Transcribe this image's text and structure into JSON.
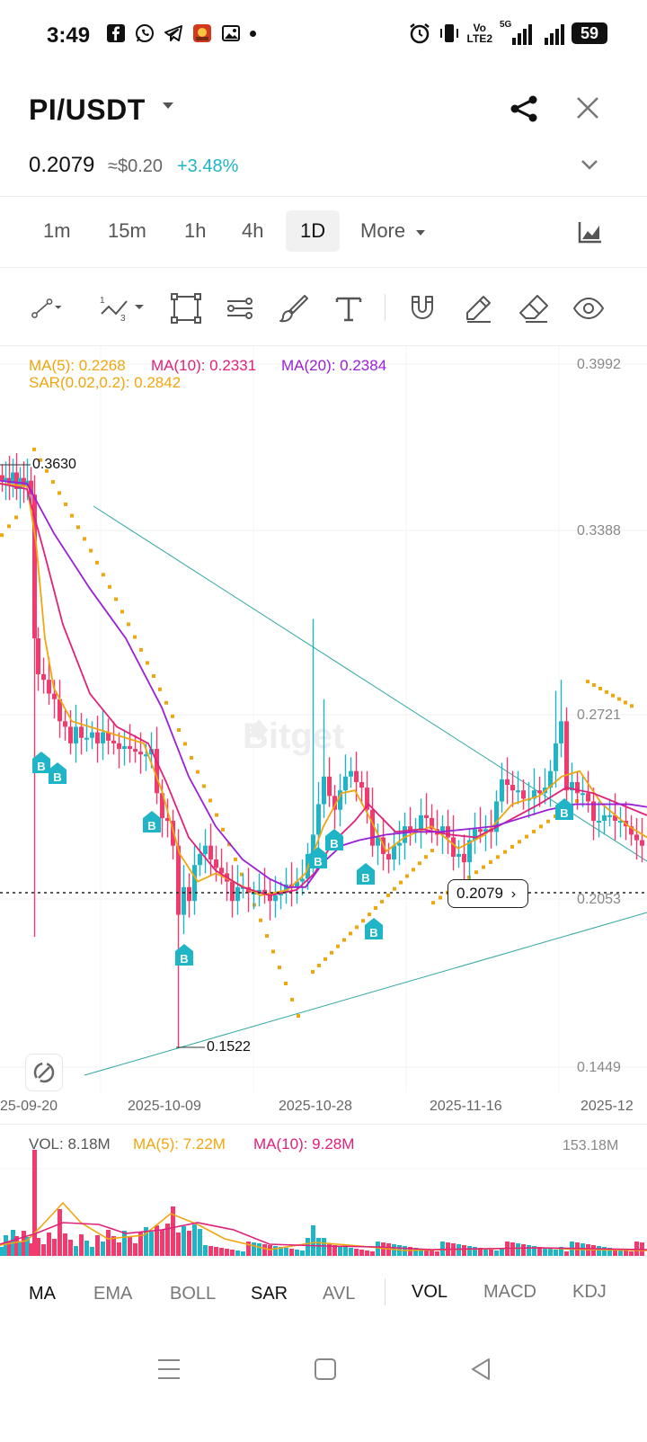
{
  "status_bar": {
    "time": "3:49",
    "left_icons": [
      "facebook-icon",
      "whatsapp-icon",
      "telegram-icon",
      "game-app-icon",
      "gallery-icon",
      "more-dot-icon"
    ],
    "right_icons": [
      "alarm-icon",
      "vibrate-icon",
      "volte-icon",
      "signal-5g-icon",
      "signal-icon"
    ],
    "network_label_1": "Vo",
    "network_label_2": "LTE2",
    "network_5g": "5G",
    "battery": "59"
  },
  "header": {
    "pair": "PI/USDT",
    "price": "0.2079",
    "approx_usd": "≈$0.20",
    "change": "+3.48%",
    "change_color": "#1fb5c7"
  },
  "timeframes": {
    "items": [
      "1m",
      "15m",
      "1h",
      "4h",
      "1D",
      "More"
    ],
    "active": "1D"
  },
  "toolbar": {
    "tools": [
      "line-tool-icon",
      "fibonacci-tool-icon",
      "rectangle-tool-icon",
      "parallel-channel-icon",
      "brush-icon",
      "text-tool-icon",
      "magnet-icon",
      "pencil-icon",
      "eraser-icon",
      "eye-icon"
    ]
  },
  "indicators": {
    "ma5": "MA(5): 0.2268",
    "ma10": "MA(10): 0.2331",
    "ma20": "MA(20): 0.2384",
    "sar": "SAR(0.02,0.2): 0.2842",
    "colors": {
      "ma5": "#f0a60e",
      "ma10": "#e0217a",
      "ma20": "#9b1fd6",
      "sar": "#f0a60e",
      "up": "#1fb5c7",
      "down": "#f23a6e"
    }
  },
  "chart": {
    "price_axis": [
      "0.3992",
      "0.3388",
      "0.2721",
      "0.2053",
      "0.1449"
    ],
    "date_axis": [
      "25-09-20",
      "2025-10-09",
      "2025-10-28",
      "2025-11-16",
      "2025-12"
    ],
    "high_label": "0.3630",
    "low_label": "0.1522",
    "current_price_tag": "0.2079",
    "buy_marker": "B",
    "watermark": "Bitget"
  },
  "volume": {
    "vol": "VOL: 8.18M",
    "ma5": "MA(5): 7.22M",
    "ma10": "MA(10): 9.28M",
    "max_label": "153.18M"
  },
  "bottom_indicators": {
    "left": [
      "MA",
      "EMA",
      "BOLL",
      "SAR",
      "AVL"
    ],
    "right": [
      "VOL",
      "MACD",
      "KDJ"
    ]
  },
  "nav_bar": [
    "menu-nav-icon",
    "home-nav-icon",
    "back-nav-icon"
  ]
}
